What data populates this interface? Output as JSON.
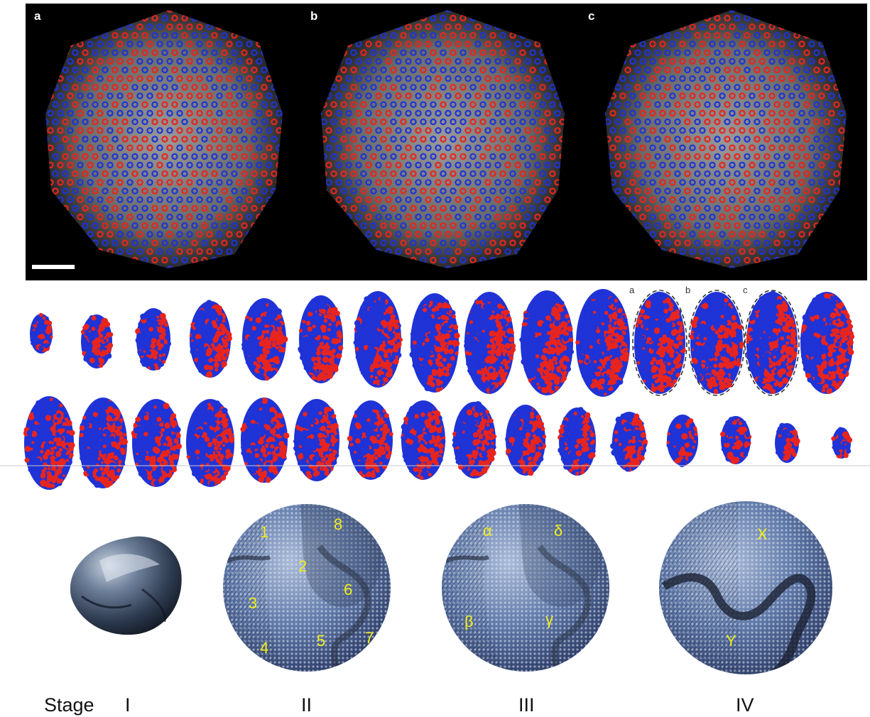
{
  "panel_labels": [
    "a",
    "b",
    "c"
  ],
  "slice_labels": [
    "a",
    "b",
    "c"
  ],
  "region_labels": {
    "stage2": [
      "1",
      "8",
      "2",
      "3",
      "6",
      "4",
      "5",
      "7"
    ],
    "stage3": [
      "α",
      "δ",
      "β",
      "γ"
    ],
    "stage4": [
      "X",
      "Y"
    ]
  },
  "stage_caption": "Stage",
  "stage_numerals": [
    "I",
    "II",
    "III",
    "IV"
  ],
  "colors": {
    "site_red": "#e8241f",
    "site_blue": "#1f33d6",
    "label_yellow": "#f2ee1a",
    "sphere_blue": "#5f7fb8"
  }
}
